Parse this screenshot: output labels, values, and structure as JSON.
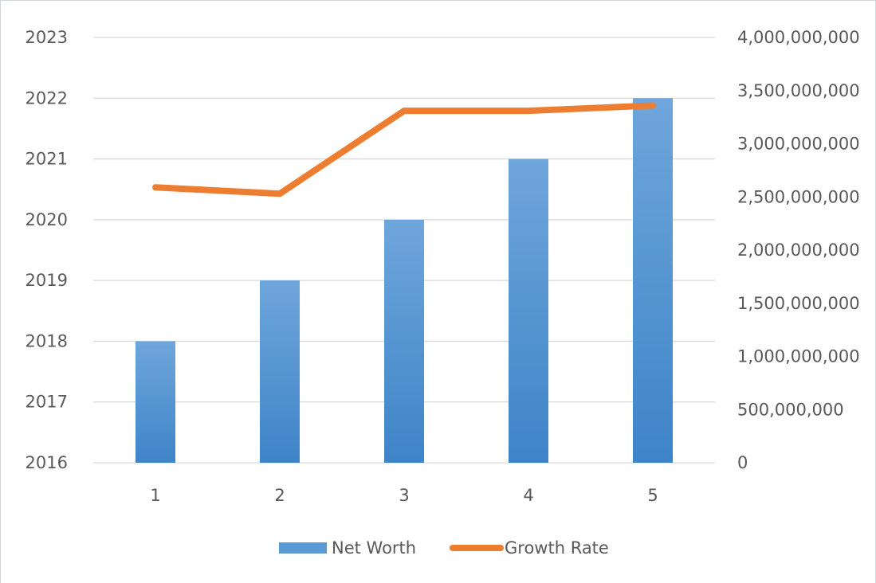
{
  "chart_data": {
    "type": "bar",
    "categories": [
      "1",
      "2",
      "3",
      "4",
      "5"
    ],
    "series": [
      {
        "name": "Net Worth",
        "type": "bar",
        "axis": "left",
        "color": "#5b9bd5",
        "values": [
          2018,
          2019,
          2020,
          2021,
          2022
        ]
      },
      {
        "name": "Growth Rate",
        "type": "line",
        "axis": "right",
        "color": "#ed7d31",
        "values": [
          2590000000,
          2530000000,
          3310000000,
          3310000000,
          3360000000
        ]
      }
    ],
    "y_left": {
      "min": 2016,
      "max": 2023,
      "ticks": [
        "2016",
        "2017",
        "2018",
        "2019",
        "2020",
        "2021",
        "2022",
        "2023"
      ]
    },
    "y_right": {
      "min": 0,
      "max": 4000000000,
      "ticks": [
        "0",
        "500,000,000",
        "1,000,000,000",
        "1,500,000,000",
        "2,000,000,000",
        "2,500,000,000",
        "3,000,000,000",
        "3,500,000,000",
        "4,000,000,000"
      ]
    },
    "grid": true,
    "legend_position": "bottom",
    "title": "",
    "xlabel": "",
    "ylabel": ""
  }
}
